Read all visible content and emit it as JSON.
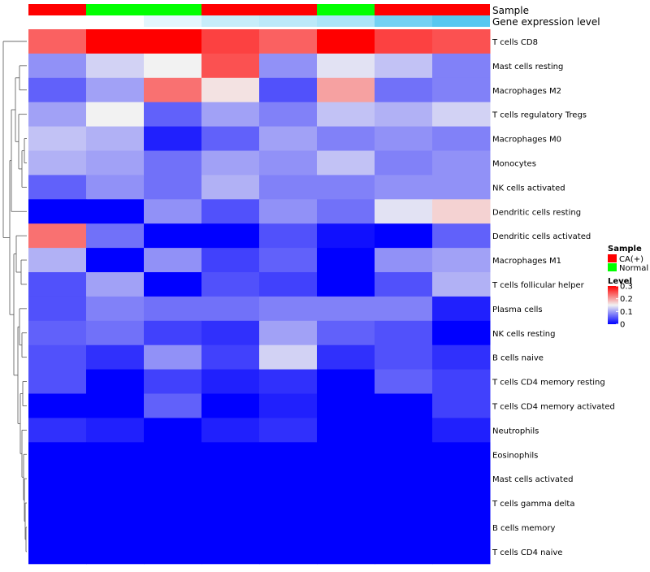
{
  "chart_data": {
    "type": "heatmap",
    "annotation_labels": [
      "Sample",
      "Gene expression level"
    ],
    "sample_groups": [
      "CA(+)",
      "Normal"
    ],
    "sample_group_colors": {
      "CA(+)": "#FF0000",
      "Normal": "#00FF00"
    },
    "column_samples": [
      "CA(+)",
      "Normal",
      "Normal",
      "CA(+)",
      "CA(+)",
      "Normal",
      "CA(+)",
      "CA(+)"
    ],
    "column_expression": [
      0.0,
      0.0,
      0.05,
      0.1,
      0.12,
      0.15,
      0.25,
      0.3
    ],
    "expression_colors": [
      "#FFFFFF",
      "#57C8F0"
    ],
    "rows": [
      "T cells CD8",
      "Mast cells resting",
      "Macrophages M2",
      "T cells regulatory  Tregs",
      "Macrophages M0",
      "Monocytes",
      "NK cells activated",
      "Dendritic cells resting",
      "Dendritic cells activated",
      "Macrophages M1",
      "T cells follicular helper",
      "Plasma cells",
      "NK cells resting",
      "B cells naive",
      "T cells CD4 memory resting",
      "T cells CD4 memory activated",
      "Neutrophils",
      "Eosinophils",
      "Mast cells activated",
      "T cells gamma delta",
      "B cells memory",
      "T cells CD4 naive"
    ],
    "values": [
      [
        0.24,
        0.3,
        0.3,
        0.26,
        0.24,
        0.3,
        0.26,
        0.25
      ],
      [
        0.09,
        0.13,
        0.15,
        0.25,
        0.09,
        0.14,
        0.12,
        0.08
      ],
      [
        0.06,
        0.1,
        0.23,
        0.16,
        0.05,
        0.2,
        0.07,
        0.08
      ],
      [
        0.1,
        0.15,
        0.06,
        0.1,
        0.08,
        0.12,
        0.11,
        0.13
      ],
      [
        0.12,
        0.11,
        0.02,
        0.06,
        0.1,
        0.08,
        0.09,
        0.08
      ],
      [
        0.11,
        0.1,
        0.07,
        0.1,
        0.09,
        0.12,
        0.08,
        0.09
      ],
      [
        0.06,
        0.09,
        0.07,
        0.11,
        0.08,
        0.08,
        0.09,
        0.09
      ],
      [
        0.0,
        0.0,
        0.09,
        0.05,
        0.09,
        0.07,
        0.14,
        0.17
      ],
      [
        0.23,
        0.07,
        0.0,
        0.0,
        0.05,
        0.01,
        0.0,
        0.06
      ],
      [
        0.11,
        0.0,
        0.09,
        0.04,
        0.06,
        0.0,
        0.09,
        0.1
      ],
      [
        0.05,
        0.1,
        0.0,
        0.05,
        0.04,
        0.0,
        0.05,
        0.11
      ],
      [
        0.05,
        0.08,
        0.07,
        0.07,
        0.08,
        0.08,
        0.08,
        0.02
      ],
      [
        0.06,
        0.07,
        0.04,
        0.03,
        0.1,
        0.06,
        0.05,
        0.0
      ],
      [
        0.05,
        0.03,
        0.09,
        0.04,
        0.13,
        0.03,
        0.05,
        0.03
      ],
      [
        0.05,
        0.0,
        0.04,
        0.02,
        0.03,
        0.0,
        0.06,
        0.04
      ],
      [
        0.0,
        0.0,
        0.06,
        0.0,
        0.02,
        0.0,
        0.0,
        0.04
      ],
      [
        0.03,
        0.02,
        0.0,
        0.02,
        0.03,
        0.0,
        0.0,
        0.02
      ],
      [
        0.0,
        0.0,
        0.0,
        0.0,
        0.0,
        0.0,
        0.0,
        0.0
      ],
      [
        0.0,
        0.0,
        0.0,
        0.0,
        0.0,
        0.0,
        0.0,
        0.0
      ],
      [
        0.0,
        0.0,
        0.0,
        0.0,
        0.0,
        0.0,
        0.0,
        0.0
      ],
      [
        0.0,
        0.0,
        0.0,
        0.0,
        0.0,
        0.0,
        0.0,
        0.0
      ],
      [
        0.0,
        0.0,
        0.0,
        0.0,
        0.0,
        0.0,
        0.0,
        0.0
      ]
    ],
    "color_scale": {
      "min": 0,
      "max": 0.3,
      "low": "#0000FF",
      "mid": "#F2F2F2",
      "high": "#FF0000",
      "midpoint": 0.15
    },
    "legend": {
      "sample_title": "Sample",
      "level_title": "Level",
      "level_ticks": [
        "0.3",
        "0.2",
        "0.1",
        "0"
      ],
      "level_tick_values": [
        0.3,
        0.2,
        0.1,
        0
      ],
      "placement": "right"
    },
    "row_dendrogram": true
  }
}
